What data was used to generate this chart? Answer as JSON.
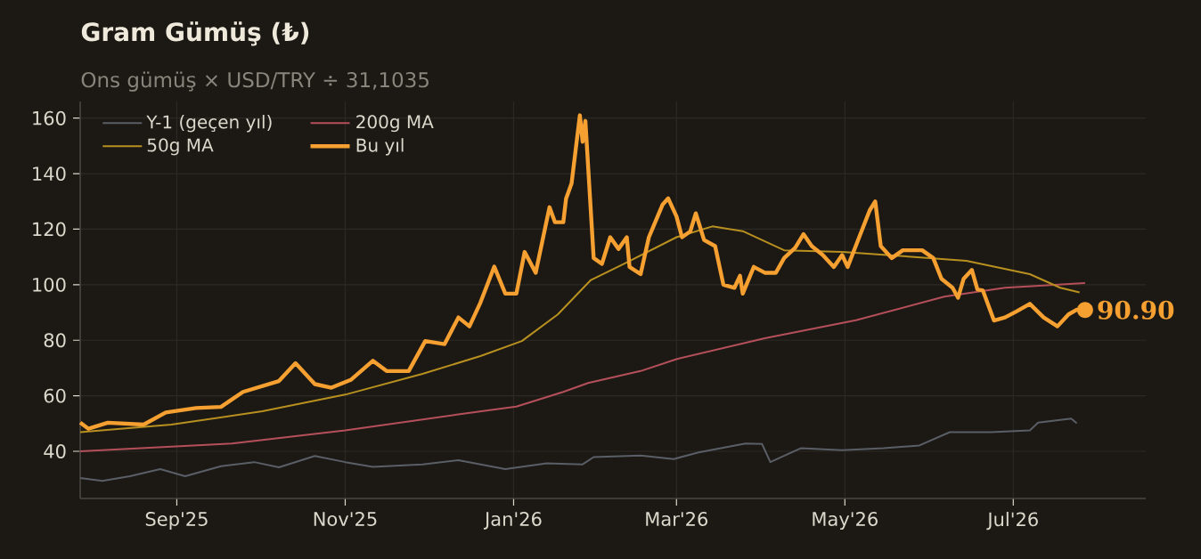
{
  "chart_data": {
    "type": "line",
    "title": "Gram Gümüş (₺)",
    "subtitle": "Ons gümüş × USD/TRY ÷ 31,1035",
    "xlim": [
      "2025-07-28",
      "2026-08-18"
    ],
    "ylim": [
      23,
      166
    ],
    "xticks": [
      {
        "value": "2025-09-01",
        "label": "Sep'25"
      },
      {
        "value": "2025-11-01",
        "label": "Nov'25"
      },
      {
        "value": "2026-01-01",
        "label": "Jan'26"
      },
      {
        "value": "2026-03-01",
        "label": "Mar'26"
      },
      {
        "value": "2026-05-01",
        "label": "May'26"
      },
      {
        "value": "2026-07-01",
        "label": "Jul'26"
      }
    ],
    "yticks": [
      40,
      60,
      80,
      100,
      120,
      140,
      160
    ],
    "grid": true,
    "legend": "top left",
    "series": [
      {
        "name": "Y-1 (geçen yıl)",
        "color": "#5a5e66",
        "x": [
          "2025-07-28",
          "2025-08-05",
          "2025-08-15",
          "2025-08-26",
          "2025-09-04",
          "2025-09-17",
          "2025-09-29",
          "2025-10-08",
          "2025-10-21",
          "2025-11-01",
          "2025-11-11",
          "2025-11-29",
          "2025-12-12",
          "2025-12-29",
          "2026-01-13",
          "2026-01-26",
          "2026-01-30",
          "2026-02-16",
          "2026-02-28",
          "2026-03-09",
          "2026-03-26",
          "2026-04-01",
          "2026-04-04",
          "2026-04-15",
          "2026-04-30",
          "2026-05-15",
          "2026-05-28",
          "2026-06-08",
          "2026-06-23",
          "2026-07-07",
          "2026-07-10",
          "2026-07-22",
          "2026-07-24"
        ],
        "values": [
          30.4,
          29.3,
          31,
          33.6,
          31,
          34.6,
          36.1,
          34.2,
          38.3,
          36.1,
          34.4,
          35.3,
          36.8,
          33.6,
          35.7,
          35.3,
          37.9,
          38.5,
          37.2,
          39.6,
          42.8,
          42.6,
          36.1,
          41.1,
          40.4,
          41.1,
          42.1,
          46.9,
          46.9,
          47.5,
          50.3,
          51.8,
          50.1
        ]
      },
      {
        "name": "200g MA",
        "color": "#b5505a",
        "x": [
          "2025-07-28",
          "2025-09-21",
          "2025-11-01",
          "2025-12-12",
          "2026-01-02",
          "2026-01-19",
          "2026-01-28",
          "2026-02-16",
          "2026-03-01",
          "2026-04-02",
          "2026-05-05",
          "2026-06-06",
          "2026-06-28",
          "2026-07-27"
        ],
        "values": [
          40,
          42.8,
          47.5,
          53.3,
          56.1,
          61.4,
          64.6,
          68.9,
          73.2,
          80.7,
          87.2,
          95.7,
          98.9,
          100.6
        ]
      },
      {
        "name": "50g MA",
        "color": "#b8901f",
        "x": [
          "2025-07-28",
          "2025-08-30",
          "2025-10-02",
          "2025-11-01",
          "2025-11-29",
          "2025-12-20",
          "2026-01-04",
          "2026-01-17",
          "2026-01-29",
          "2026-02-10",
          "2026-03-01",
          "2026-03-14",
          "2026-03-25",
          "2026-04-09",
          "2026-04-30",
          "2026-05-22",
          "2026-06-14",
          "2026-07-07",
          "2026-07-18",
          "2026-07-25"
        ],
        "values": [
          46.9,
          49.6,
          54.4,
          60.4,
          67.9,
          74.3,
          79.7,
          89.3,
          101.7,
          107.5,
          117.1,
          121,
          119.3,
          112.4,
          111.8,
          110.3,
          108.6,
          103.8,
          98.9,
          97.2
        ]
      },
      {
        "name": "Bu yıl",
        "color": "#f5a030",
        "x": [
          "2025-07-28",
          "2025-07-31",
          "2025-08-07",
          "2025-08-20",
          "2025-08-28",
          "2025-09-08",
          "2025-09-17",
          "2025-09-25",
          "2025-10-08",
          "2025-10-14",
          "2025-10-21",
          "2025-10-27",
          "2025-11-03",
          "2025-11-11",
          "2025-11-16",
          "2025-11-24",
          "2025-11-30",
          "2025-12-07",
          "2025-12-12",
          "2025-12-16",
          "2025-12-20",
          "2025-12-25",
          "2025-12-29",
          "2026-01-02",
          "2026-01-05",
          "2026-01-09",
          "2026-01-14",
          "2026-01-16",
          "2026-01-19",
          "2026-01-20",
          "2026-01-22",
          "2026-01-25",
          "2026-01-26",
          "2026-01-27",
          "2026-01-30",
          "2026-02-02",
          "2026-02-05",
          "2026-02-08",
          "2026-02-11",
          "2026-02-12",
          "2026-02-16",
          "2026-02-19",
          "2026-02-24",
          "2026-02-26",
          "2026-03-01",
          "2026-03-03",
          "2026-03-06",
          "2026-03-08",
          "2026-03-11",
          "2026-03-15",
          "2026-03-18",
          "2026-03-22",
          "2026-03-24",
          "2026-03-25",
          "2026-03-29",
          "2026-04-02",
          "2026-04-06",
          "2026-04-09",
          "2026-04-13",
          "2026-04-16",
          "2026-04-19",
          "2026-04-23",
          "2026-04-27",
          "2026-04-30",
          "2026-05-02",
          "2026-05-07",
          "2026-05-10",
          "2026-05-12",
          "2026-05-14",
          "2026-05-18",
          "2026-05-22",
          "2026-05-29",
          "2026-06-02",
          "2026-06-05",
          "2026-06-09",
          "2026-06-11",
          "2026-06-13",
          "2026-06-16",
          "2026-06-18",
          "2026-06-20",
          "2026-06-24",
          "2026-06-28",
          "2026-07-02",
          "2026-07-07",
          "2026-07-12",
          "2026-07-17",
          "2026-07-21",
          "2026-07-24",
          "2026-07-27"
        ],
        "values": [
          50.3,
          48.1,
          50.3,
          49.6,
          54,
          55.6,
          56,
          61.4,
          65.3,
          71.7,
          64.2,
          62.9,
          65.7,
          72.6,
          68.9,
          68.9,
          79.7,
          78.6,
          88.2,
          85,
          93.6,
          106.5,
          96.8,
          96.8,
          111.8,
          104.3,
          127.9,
          122.5,
          122.5,
          131,
          136.5,
          161,
          151.5,
          159,
          109.6,
          107.5,
          117.1,
          112.9,
          117.1,
          106.4,
          103.8,
          117.1,
          128.9,
          131.1,
          124.6,
          117.1,
          119.2,
          125.7,
          116.1,
          113.9,
          100,
          98.9,
          103.2,
          96.8,
          106.4,
          104.3,
          104.3,
          109.6,
          113.3,
          118.2,
          113.9,
          110.7,
          106.4,
          110.7,
          106.4,
          119.2,
          126.8,
          130,
          113.9,
          109.6,
          112.4,
          112.4,
          109.6,
          102.1,
          98.9,
          95.3,
          102.1,
          105.3,
          98.3,
          97.9,
          87.1,
          88.2,
          90.3,
          93.1,
          88.2,
          85,
          89.3,
          91,
          90.9
        ]
      }
    ],
    "annotations": [
      {
        "text": "90.90",
        "x": "2026-07-27",
        "y": 90.9
      }
    ]
  }
}
